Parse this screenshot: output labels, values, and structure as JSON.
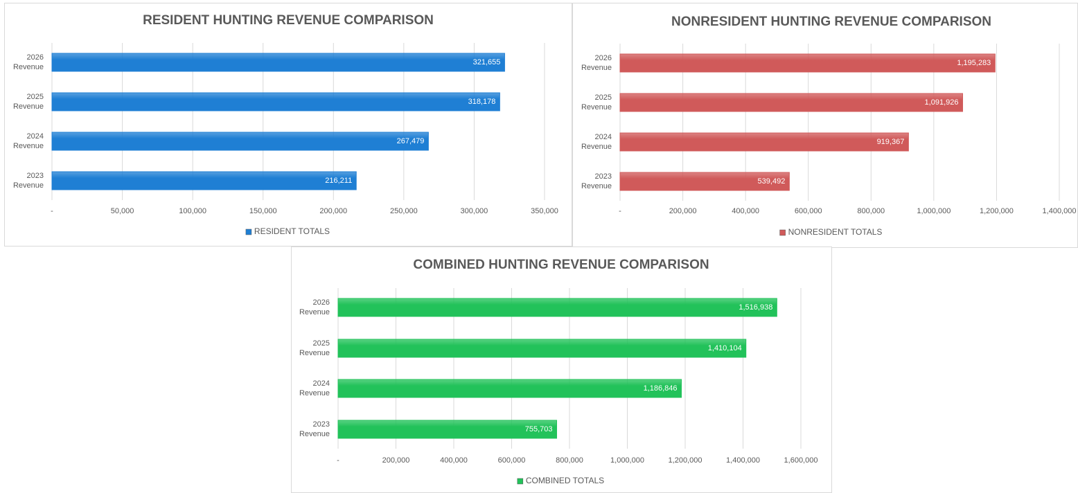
{
  "chart_data": [
    {
      "type": "bar",
      "title": "RESIDENT HUNTING REVENUE COMPARISON",
      "categories": [
        "2026 Revenue",
        "2025 Revenue",
        "2024 Revenue",
        "2023 Revenue"
      ],
      "series": [
        {
          "name": "RESIDENT TOTALS",
          "color": "#1f7fd4",
          "values": [
            321655,
            318178,
            267479,
            216211
          ],
          "value_labels": [
            "321,655",
            "318,178",
            "267,479",
            "216,211"
          ]
        }
      ],
      "xlim": [
        0,
        350000
      ],
      "xticks": [
        {
          "value": 0,
          "label": "-"
        },
        {
          "value": 50000,
          "label": "50,000"
        },
        {
          "value": 100000,
          "label": "100,000"
        },
        {
          "value": 150000,
          "label": "150,000"
        },
        {
          "value": 200000,
          "label": "200,000"
        },
        {
          "value": 250000,
          "label": "250,000"
        },
        {
          "value": 300000,
          "label": "300,000"
        },
        {
          "value": 350000,
          "label": "350,000"
        }
      ],
      "grid": true,
      "legend": "bottom"
    },
    {
      "type": "bar",
      "title": "NONRESIDENT HUNTING REVENUE COMPARISON",
      "categories": [
        "2026 Revenue",
        "2025 Revenue",
        "2024 Revenue",
        "2023 Revenue"
      ],
      "series": [
        {
          "name": "NONRESIDENT TOTALS",
          "color": "#d05a5a",
          "values": [
            1195283,
            1091926,
            919367,
            539492
          ],
          "value_labels": [
            "1,195,283",
            "1,091,926",
            "919,367",
            "539,492"
          ]
        }
      ],
      "xlim": [
        0,
        1400000
      ],
      "xticks": [
        {
          "value": 0,
          "label": "-"
        },
        {
          "value": 200000,
          "label": "200,000"
        },
        {
          "value": 400000,
          "label": "400,000"
        },
        {
          "value": 600000,
          "label": "600,000"
        },
        {
          "value": 800000,
          "label": "800,000"
        },
        {
          "value": 1000000,
          "label": "1,000,000"
        },
        {
          "value": 1200000,
          "label": "1,200,000"
        },
        {
          "value": 1400000,
          "label": "1,400,000"
        }
      ],
      "grid": true,
      "legend": "bottom"
    },
    {
      "type": "bar",
      "title": "COMBINED HUNTING REVENUE COMPARISON",
      "categories": [
        "2026 Revenue",
        "2025 Revenue",
        "2024 Revenue",
        "2023 Revenue"
      ],
      "series": [
        {
          "name": "COMBINED TOTALS",
          "color": "#22c25a",
          "values": [
            1516938,
            1410104,
            1186846,
            755703
          ],
          "value_labels": [
            "1,516,938",
            "1,410,104",
            "1,186,846",
            "755,703"
          ]
        }
      ],
      "xlim": [
        0,
        1600000
      ],
      "xticks": [
        {
          "value": 0,
          "label": "-"
        },
        {
          "value": 200000,
          "label": "200,000"
        },
        {
          "value": 400000,
          "label": "400,000"
        },
        {
          "value": 600000,
          "label": "600,000"
        },
        {
          "value": 800000,
          "label": "800,000"
        },
        {
          "value": 1000000,
          "label": "1,000,000"
        },
        {
          "value": 1200000,
          "label": "1,200,000"
        },
        {
          "value": 1400000,
          "label": "1,400,000"
        },
        {
          "value": 1600000,
          "label": "1,600,000"
        }
      ],
      "grid": true,
      "legend": "bottom"
    }
  ]
}
